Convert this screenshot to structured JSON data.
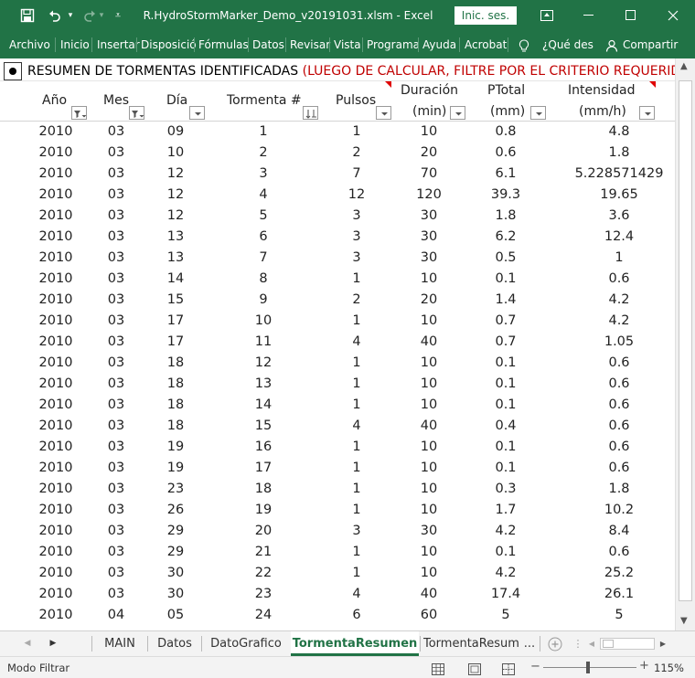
{
  "window": {
    "title": "R.HydroStormMarker_Demo_v20191031.xlsm  -  Excel",
    "signin_label": "Inic. ses."
  },
  "ribbon": {
    "tabs": [
      "Archivo",
      "Inicio",
      "Insertar",
      "Disposició",
      "Fórmulas",
      "Datos",
      "Revisar",
      "Vista",
      "Programa",
      "Ayuda",
      "Acrobat"
    ],
    "tell_me": "¿Qué des",
    "share": "Compartir"
  },
  "sheet": {
    "title_black": "RESUMEN DE TORMENTAS IDENTIFICADAS ",
    "title_red": "(LUEGO DE CALCULAR, FILTRE POR EL CRITERIO REQUERIDO P",
    "headers": {
      "anio": "Año",
      "mes": "Mes",
      "dia": "Día",
      "tormenta": "Tormenta #",
      "pulsos": "Pulsos",
      "duracion": "Duración",
      "duracion_unit": "(min)",
      "ptotal": "PTotal",
      "ptotal_unit": "(mm)",
      "intensidad": "Intensidad",
      "intensidad_unit": "(mm/h)"
    },
    "rows": [
      [
        "2010",
        "03",
        "09",
        "1",
        "1",
        "10",
        "0.8",
        "4.8"
      ],
      [
        "2010",
        "03",
        "10",
        "2",
        "2",
        "20",
        "0.6",
        "1.8"
      ],
      [
        "2010",
        "03",
        "12",
        "3",
        "7",
        "70",
        "6.1",
        "5.228571429"
      ],
      [
        "2010",
        "03",
        "12",
        "4",
        "12",
        "120",
        "39.3",
        "19.65"
      ],
      [
        "2010",
        "03",
        "12",
        "5",
        "3",
        "30",
        "1.8",
        "3.6"
      ],
      [
        "2010",
        "03",
        "13",
        "6",
        "3",
        "30",
        "6.2",
        "12.4"
      ],
      [
        "2010",
        "03",
        "13",
        "7",
        "3",
        "30",
        "0.5",
        "1"
      ],
      [
        "2010",
        "03",
        "14",
        "8",
        "1",
        "10",
        "0.1",
        "0.6"
      ],
      [
        "2010",
        "03",
        "15",
        "9",
        "2",
        "20",
        "1.4",
        "4.2"
      ],
      [
        "2010",
        "03",
        "17",
        "10",
        "1",
        "10",
        "0.7",
        "4.2"
      ],
      [
        "2010",
        "03",
        "17",
        "11",
        "4",
        "40",
        "0.7",
        "1.05"
      ],
      [
        "2010",
        "03",
        "18",
        "12",
        "1",
        "10",
        "0.1",
        "0.6"
      ],
      [
        "2010",
        "03",
        "18",
        "13",
        "1",
        "10",
        "0.1",
        "0.6"
      ],
      [
        "2010",
        "03",
        "18",
        "14",
        "1",
        "10",
        "0.1",
        "0.6"
      ],
      [
        "2010",
        "03",
        "18",
        "15",
        "4",
        "40",
        "0.4",
        "0.6"
      ],
      [
        "2010",
        "03",
        "19",
        "16",
        "1",
        "10",
        "0.1",
        "0.6"
      ],
      [
        "2010",
        "03",
        "19",
        "17",
        "1",
        "10",
        "0.1",
        "0.6"
      ],
      [
        "2010",
        "03",
        "23",
        "18",
        "1",
        "10",
        "0.3",
        "1.8"
      ],
      [
        "2010",
        "03",
        "26",
        "19",
        "1",
        "10",
        "1.7",
        "10.2"
      ],
      [
        "2010",
        "03",
        "29",
        "20",
        "3",
        "30",
        "4.2",
        "8.4"
      ],
      [
        "2010",
        "03",
        "29",
        "21",
        "1",
        "10",
        "0.1",
        "0.6"
      ],
      [
        "2010",
        "03",
        "30",
        "22",
        "1",
        "10",
        "4.2",
        "25.2"
      ],
      [
        "2010",
        "03",
        "30",
        "23",
        "4",
        "40",
        "17.4",
        "26.1"
      ],
      [
        "2010",
        "04",
        "05",
        "24",
        "6",
        "60",
        "5",
        "5"
      ]
    ]
  },
  "sheet_tabs": {
    "tabs": [
      "MAIN",
      "Datos",
      "DatoGrafico",
      "TormentaResumen",
      "TormentaResum"
    ],
    "more": "...",
    "active_index": 3
  },
  "status": {
    "mode": "Modo Filtrar",
    "zoom": "115%"
  },
  "colors": {
    "excel_green": "#217346",
    "warning_red": "#c00000"
  }
}
